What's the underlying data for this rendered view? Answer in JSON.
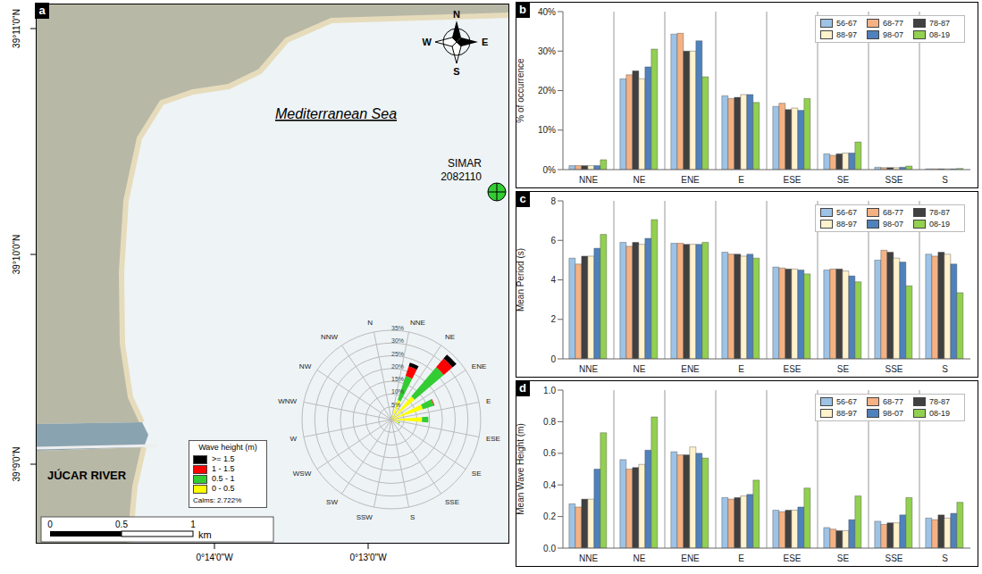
{
  "chart_data": [
    {
      "panel": "b",
      "type": "bar",
      "ylabel": "% of occurrence",
      "categories": [
        "NNE",
        "NE",
        "ENE",
        "E",
        "ESE",
        "SE",
        "SSE",
        "S"
      ],
      "series": [
        {
          "name": "56-67",
          "color": "#9dc3e6",
          "values": [
            1,
            23,
            34.3,
            18.7,
            16,
            4,
            0.6,
            0.2
          ]
        },
        {
          "name": "68-77",
          "color": "#f4b183",
          "values": [
            1,
            24,
            34.5,
            18,
            16.8,
            3.6,
            0.5,
            0.2
          ]
        },
        {
          "name": "78-87",
          "color": "#404040",
          "values": [
            1,
            25,
            30,
            18.3,
            15.2,
            4,
            0.5,
            0.2
          ]
        },
        {
          "name": "88-97",
          "color": "#fff2cc",
          "values": [
            1,
            23,
            30,
            19,
            15.6,
            4.2,
            0.5,
            0.2
          ]
        },
        {
          "name": "98-07",
          "color": "#4f81bd",
          "values": [
            1,
            26,
            32.6,
            19,
            15,
            4.2,
            0.6,
            0.2
          ]
        },
        {
          "name": "08-19",
          "color": "#92d050",
          "values": [
            2.5,
            30.5,
            23.5,
            17,
            18,
            7,
            0.9,
            0.3
          ]
        }
      ],
      "ylim": [
        0,
        40
      ],
      "yticks": [
        {
          "value": 0,
          "label": "0%"
        },
        {
          "value": 10,
          "label": "10%"
        },
        {
          "value": 20,
          "label": "20%"
        },
        {
          "value": 30,
          "label": "30%"
        },
        {
          "value": 40,
          "label": "40%"
        }
      ],
      "grid": true,
      "legend": "top right"
    },
    {
      "panel": "c",
      "type": "bar",
      "ylabel": "Mean Period (s)",
      "categories": [
        "NNE",
        "NE",
        "ENE",
        "E",
        "ESE",
        "SE",
        "SSE",
        "S"
      ],
      "series": [
        {
          "name": "56-67",
          "color": "#9dc3e6",
          "values": [
            5.1,
            5.9,
            5.85,
            5.4,
            4.65,
            4.5,
            5.0,
            5.3
          ]
        },
        {
          "name": "68-77",
          "color": "#f4b183",
          "values": [
            4.8,
            5.7,
            5.85,
            5.3,
            4.6,
            4.55,
            5.5,
            5.2
          ]
        },
        {
          "name": "78-87",
          "color": "#404040",
          "values": [
            5.2,
            5.9,
            5.8,
            5.3,
            4.55,
            4.55,
            5.4,
            5.4
          ]
        },
        {
          "name": "88-97",
          "color": "#fff2cc",
          "values": [
            5.2,
            5.8,
            5.8,
            5.2,
            4.55,
            4.45,
            5.1,
            5.3
          ]
        },
        {
          "name": "98-07",
          "color": "#4f81bd",
          "values": [
            5.6,
            6.1,
            5.8,
            5.3,
            4.5,
            4.2,
            4.9,
            4.8
          ]
        },
        {
          "name": "08-19",
          "color": "#92d050",
          "values": [
            6.3,
            7.05,
            5.9,
            5.1,
            4.3,
            3.9,
            3.7,
            3.35
          ]
        }
      ],
      "ylim": [
        0,
        8
      ],
      "yticks": [
        0,
        2,
        4,
        6,
        8
      ],
      "grid": true,
      "legend": "top right"
    },
    {
      "panel": "d",
      "type": "bar",
      "ylabel": "Mean Wave Height (m)",
      "categories": [
        "NNE",
        "NE",
        "ENE",
        "E",
        "ESE",
        "SE",
        "SSE",
        "S"
      ],
      "series": [
        {
          "name": "56-67",
          "color": "#9dc3e6",
          "values": [
            0.28,
            0.56,
            0.61,
            0.32,
            0.24,
            0.13,
            0.17,
            0.19
          ]
        },
        {
          "name": "68-77",
          "color": "#f4b183",
          "values": [
            0.26,
            0.5,
            0.59,
            0.31,
            0.23,
            0.12,
            0.15,
            0.18
          ]
        },
        {
          "name": "78-87",
          "color": "#404040",
          "values": [
            0.31,
            0.51,
            0.59,
            0.32,
            0.24,
            0.11,
            0.16,
            0.21
          ]
        },
        {
          "name": "88-97",
          "color": "#fff2cc",
          "values": [
            0.31,
            0.53,
            0.64,
            0.33,
            0.24,
            0.11,
            0.16,
            0.19
          ]
        },
        {
          "name": "98-07",
          "color": "#4f81bd",
          "values": [
            0.5,
            0.62,
            0.6,
            0.34,
            0.26,
            0.18,
            0.21,
            0.22
          ]
        },
        {
          "name": "08-19",
          "color": "#92d050",
          "values": [
            0.73,
            0.83,
            0.57,
            0.43,
            0.38,
            0.33,
            0.32,
            0.29
          ]
        }
      ],
      "ylim": [
        0,
        1
      ],
      "yticks": [
        {
          "value": 0,
          "label": "0.0"
        },
        0.2,
        0.4,
        0.6,
        0.8,
        {
          "value": 1,
          "label": "1.0"
        }
      ],
      "grid": true,
      "legend": "top right"
    },
    {
      "type": "rose",
      "legend_title": "Wave height (m)",
      "annotations": [
        "Calms: 2.722%"
      ],
      "categories": [
        "N",
        "NNE",
        "NE",
        "ENE",
        "E",
        "ESE",
        "SE",
        "SSE",
        "S",
        "SSW",
        "SW",
        "WSW",
        "W",
        "WNW",
        "NW",
        "NNW"
      ],
      "series": [
        {
          "name": "0 - 0.5",
          "color": "#ffff00",
          "values": [
            0,
            0.8,
            8,
            12,
            13,
            12,
            3,
            0.4,
            0.2,
            0,
            0,
            0,
            0,
            0,
            0,
            0
          ]
        },
        {
          "name": "0.5 - 1",
          "color": "#33cc33",
          "values": [
            0,
            0.2,
            10,
            15,
            4.5,
            2.5,
            0.5,
            0.1,
            0,
            0,
            0,
            0,
            0,
            0,
            0,
            0
          ]
        },
        {
          "name": "1 - 1.5",
          "color": "#ff0000",
          "values": [
            0,
            0,
            4,
            4.5,
            0.3,
            0,
            0,
            0,
            0,
            0,
            0,
            0,
            0,
            0,
            0,
            0
          ]
        },
        {
          "name": ">= 1.5",
          "color": "#000000",
          "values": [
            0,
            0,
            1.5,
            2,
            0,
            0,
            0,
            0,
            0,
            0,
            0,
            0,
            0,
            0,
            0,
            0
          ]
        }
      ],
      "ylim": [
        0,
        35
      ],
      "yticks": [
        {
          "value": 5,
          "label": "5%"
        },
        {
          "value": 10,
          "label": "10%"
        },
        {
          "value": 15,
          "label": "15%"
        },
        {
          "value": 20,
          "label": "20%"
        },
        {
          "value": 25,
          "label": "25%"
        },
        {
          "value": 30,
          "label": "30%"
        },
        {
          "value": 35,
          "label": "35%"
        }
      ],
      "stacked": true,
      "grid": true,
      "legend": "bottom left"
    }
  ],
  "map": {
    "panel": "a",
    "sea_label": "Mediterranean Sea",
    "station": "SIMAR 2082110",
    "river": "JÚCAR RIVER",
    "compass": {
      "n": "N",
      "e": "E",
      "s": "S",
      "w": "W"
    },
    "lat_labels": [
      "39°11'0\"N",
      "39°10'0\"N",
      "39°9'0\"N"
    ],
    "lon_labels": [
      "0°14'0\"W",
      "0°13'0\"W"
    ],
    "scale_labels": [
      "0",
      "0.5",
      "1"
    ],
    "scale_unit": "km"
  }
}
